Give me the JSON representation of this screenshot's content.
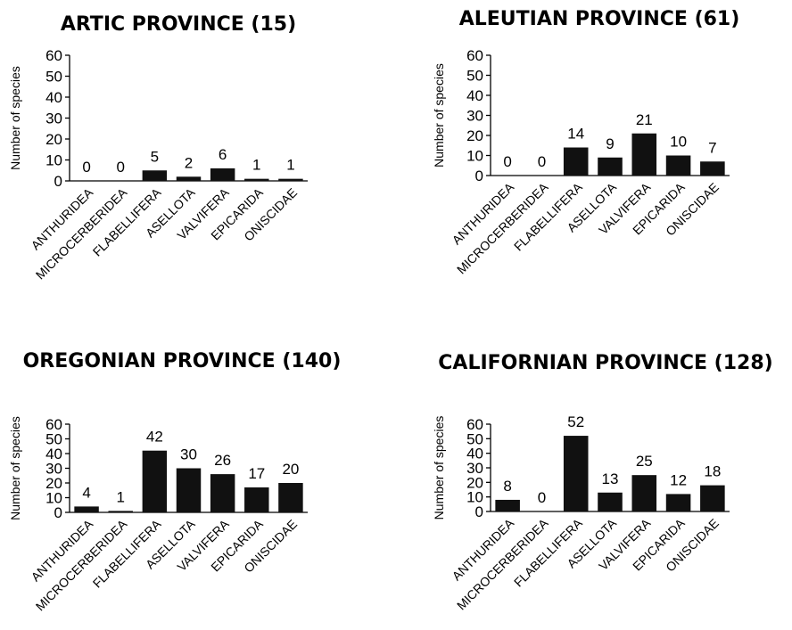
{
  "chart_data": [
    {
      "type": "bar",
      "title": "ARTIC PROVINCE (15)",
      "ylabel": "Number of species",
      "categories": [
        "ANTHURIDEA",
        "MICROCERBERIDEA",
        "FLABELLIFERA",
        "ASELLOTA",
        "VALVIFERA",
        "EPICARIDA",
        "ONISCIDAE"
      ],
      "values": [
        0,
        0,
        5,
        2,
        6,
        1,
        1
      ],
      "ylim": [
        0,
        60
      ],
      "yticks": [
        0,
        10,
        20,
        30,
        40,
        50,
        60
      ]
    },
    {
      "type": "bar",
      "title": "ALEUTIAN PROVINCE (61)",
      "ylabel": "Number of species",
      "categories": [
        "ANTHURIDEA",
        "MICROCERBERIDEA",
        "FLABELLIFERA",
        "ASELLOTA",
        "VALVIFERA",
        "EPICARIDA",
        "ONISCIDAE"
      ],
      "values": [
        0,
        0,
        14,
        9,
        21,
        10,
        7
      ],
      "ylim": [
        0,
        60
      ],
      "yticks": [
        0,
        10,
        20,
        30,
        40,
        50,
        60
      ]
    },
    {
      "type": "bar",
      "title": "OREGONIAN PROVINCE (140)",
      "ylabel": "Number of species",
      "categories": [
        "ANTHURIDEA",
        "MICROCERBERIDEA",
        "FLABELLIFERA",
        "ASELLOTA",
        "VALVIFERA",
        "EPICARIDA",
        "ONISCIDAE"
      ],
      "values": [
        4,
        1,
        42,
        30,
        26,
        17,
        20
      ],
      "ylim": [
        0,
        60
      ],
      "yticks": [
        0,
        10,
        20,
        30,
        40,
        50,
        60
      ]
    },
    {
      "type": "bar",
      "title": "CALIFORNIAN PROVINCE (128)",
      "ylabel": "Number of species",
      "categories": [
        "ANTHURIDEA",
        "MICROCERBERIDEA",
        "FLABELLIFERA",
        "ASELLOTA",
        "VALVIFERA",
        "EPICARIDA",
        "ONISCIDAE"
      ],
      "values": [
        8,
        0,
        52,
        13,
        25,
        12,
        18
      ],
      "ylim": [
        0,
        60
      ],
      "yticks": [
        0,
        10,
        20,
        30,
        40,
        50,
        60
      ]
    }
  ]
}
